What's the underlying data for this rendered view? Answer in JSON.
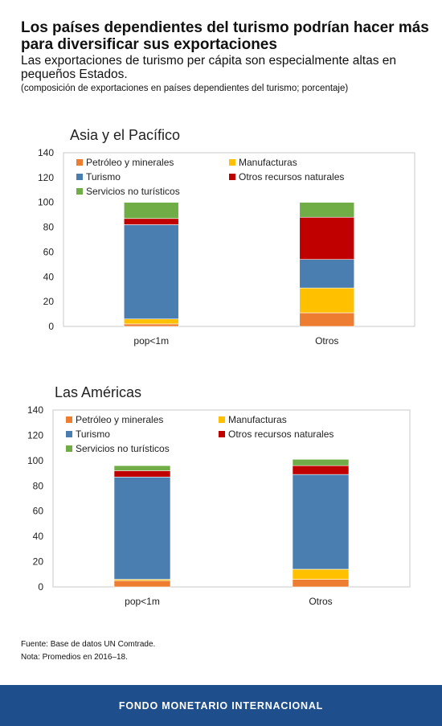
{
  "header": {
    "title": "Los países dependientes del turismo podrían hacer más para diversificar sus exportaciones",
    "subtitle": "Las exportaciones de turismo per cápita son especialmente altas en pequeños Estados.",
    "note": "(composición de exportaciones en países dependientes del turismo; porcentaje)"
  },
  "legend": [
    {
      "label": "Petróleo y minerales",
      "color": "#ed7d31"
    },
    {
      "label": "Manufacturas",
      "color": "#ffc000"
    },
    {
      "label": "Turismo",
      "color": "#4a7eb0"
    },
    {
      "label": "Otros recursos naturales",
      "color": "#c00000"
    },
    {
      "label": "Servicios no turísticos",
      "color": "#70ad47"
    }
  ],
  "chart_data": [
    {
      "type": "bar",
      "stacked": true,
      "title": "Asia y el Pacífico",
      "categories": [
        "pop<1m",
        "Otros"
      ],
      "ylim": [
        0,
        140
      ],
      "yticks": [
        0,
        20,
        40,
        60,
        80,
        100,
        120,
        140
      ],
      "legend_position": "top-inside",
      "series": [
        {
          "name": "Petróleo y minerales",
          "values": [
            2,
            11
          ]
        },
        {
          "name": "Manufacturas",
          "values": [
            4,
            20
          ]
        },
        {
          "name": "Turismo",
          "values": [
            76,
            23
          ]
        },
        {
          "name": "Otros recursos naturales",
          "values": [
            5,
            34
          ]
        },
        {
          "name": "Servicios no turísticos",
          "values": [
            13,
            12
          ]
        }
      ]
    },
    {
      "type": "bar",
      "stacked": true,
      "title": "Las Américas",
      "categories": [
        "pop<1m",
        "Otros"
      ],
      "ylim": [
        0,
        140
      ],
      "yticks": [
        0,
        20,
        40,
        60,
        80,
        100,
        120,
        140
      ],
      "legend_position": "top-inside",
      "series": [
        {
          "name": "Petróleo y minerales",
          "values": [
            5,
            6
          ]
        },
        {
          "name": "Manufacturas",
          "values": [
            1,
            8
          ]
        },
        {
          "name": "Turismo",
          "values": [
            81,
            75
          ]
        },
        {
          "name": "Otros recursos naturales",
          "values": [
            5,
            7
          ]
        },
        {
          "name": "Servicios no turísticos",
          "values": [
            4,
            5
          ]
        }
      ]
    }
  ],
  "footer": {
    "source": "Fuente: Base de datos UN Comtrade.",
    "note": "Nota: Promedios en 2016–18.",
    "org": "FONDO MONETARIO INTERNACIONAL"
  }
}
